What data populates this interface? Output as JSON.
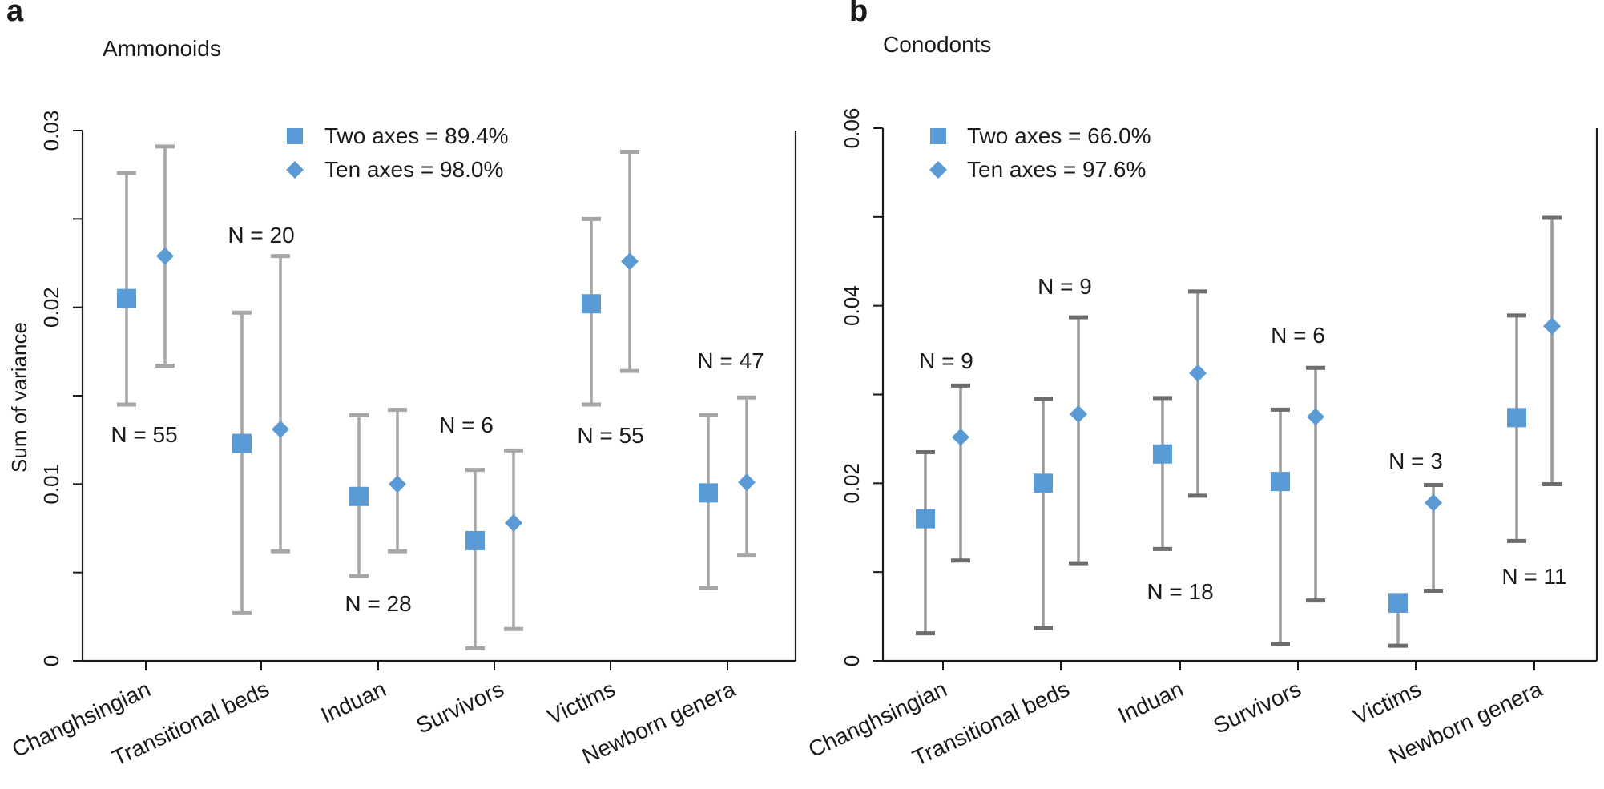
{
  "chart_data": [
    {
      "type": "scatter",
      "panel": "a",
      "title": "Ammonoids",
      "ylabel": "Sum of variance",
      "xlabel": "",
      "ylim": [
        0,
        0.03
      ],
      "yticks": [
        0,
        0.01,
        0.02,
        0.03
      ],
      "ytick_labels": [
        "0",
        "0.01",
        "0.02",
        "0.03"
      ],
      "categories": [
        "Changhsingian",
        "Transitional beds",
        "Induan",
        "Survivors",
        "Victims",
        "Newborn genera"
      ],
      "series": [
        {
          "name": "Two axes = 89.4%",
          "marker": "square",
          "values": [
            0.0205,
            0.0123,
            0.0093,
            0.0068,
            0.0202,
            0.0095
          ],
          "lower": [
            0.0145,
            0.0027,
            0.0048,
            0.0007,
            0.0145,
            0.0041
          ],
          "upper": [
            0.0276,
            0.0197,
            0.0139,
            0.0108,
            0.025,
            0.0139
          ]
        },
        {
          "name": "Ten axes = 98.0%",
          "marker": "diamond",
          "values": [
            0.0229,
            0.0131,
            0.01,
            0.0078,
            0.0226,
            0.0101
          ],
          "lower": [
            0.0167,
            0.0062,
            0.0062,
            0.0018,
            0.0164,
            0.006
          ],
          "upper": [
            0.0291,
            0.0229,
            0.0142,
            0.0119,
            0.0288,
            0.0149
          ]
        }
      ],
      "n_labels": [
        "N = 55",
        "N = 20",
        "N = 28",
        "N = 6",
        "N = 55",
        "N = 47"
      ],
      "legend_position": "top-center",
      "grid": false
    },
    {
      "type": "scatter",
      "panel": "b",
      "title": "Conodonts",
      "ylabel": "",
      "xlabel": "",
      "ylim": [
        0,
        0.06
      ],
      "yticks": [
        0,
        0.02,
        0.04,
        0.06
      ],
      "ytick_labels": [
        "0",
        "0.02",
        "0.04",
        "0.06"
      ],
      "categories": [
        "Changhsingian",
        "Transitional beds",
        "Induan",
        "Survivors",
        "Victims",
        "Newborn genera"
      ],
      "series": [
        {
          "name": "Two axes = 66.0%",
          "marker": "square",
          "values": [
            0.016,
            0.02,
            0.0233,
            0.0202,
            0.0065,
            0.0274
          ],
          "lower": [
            0.0031,
            0.0037,
            0.0126,
            0.0019,
            0.0017,
            0.0135
          ],
          "upper": [
            0.0235,
            0.0295,
            0.0296,
            0.0283,
            0.0074,
            0.0389
          ]
        },
        {
          "name": "Ten axes = 97.6%",
          "marker": "diamond",
          "values": [
            0.0252,
            0.0278,
            0.0324,
            0.0275,
            0.0178,
            0.0377
          ],
          "lower": [
            0.0113,
            0.011,
            0.0186,
            0.0068,
            0.0079,
            0.0199
          ],
          "upper": [
            0.031,
            0.0387,
            0.0416,
            0.033,
            0.0198,
            0.0499
          ]
        }
      ],
      "n_labels": [
        "N = 9",
        "N = 9",
        "N = 18",
        "N = 6",
        "N = 3",
        "N = 11"
      ],
      "legend_position": "top-left",
      "grid": false
    }
  ],
  "colors": {
    "marker": "#5b9bd5",
    "errorbar_a": "#a6a6a6",
    "errorbar_b": "#9a9a9a",
    "cap_b": "#6d6d6d",
    "axis": "#1a1a1a"
  }
}
